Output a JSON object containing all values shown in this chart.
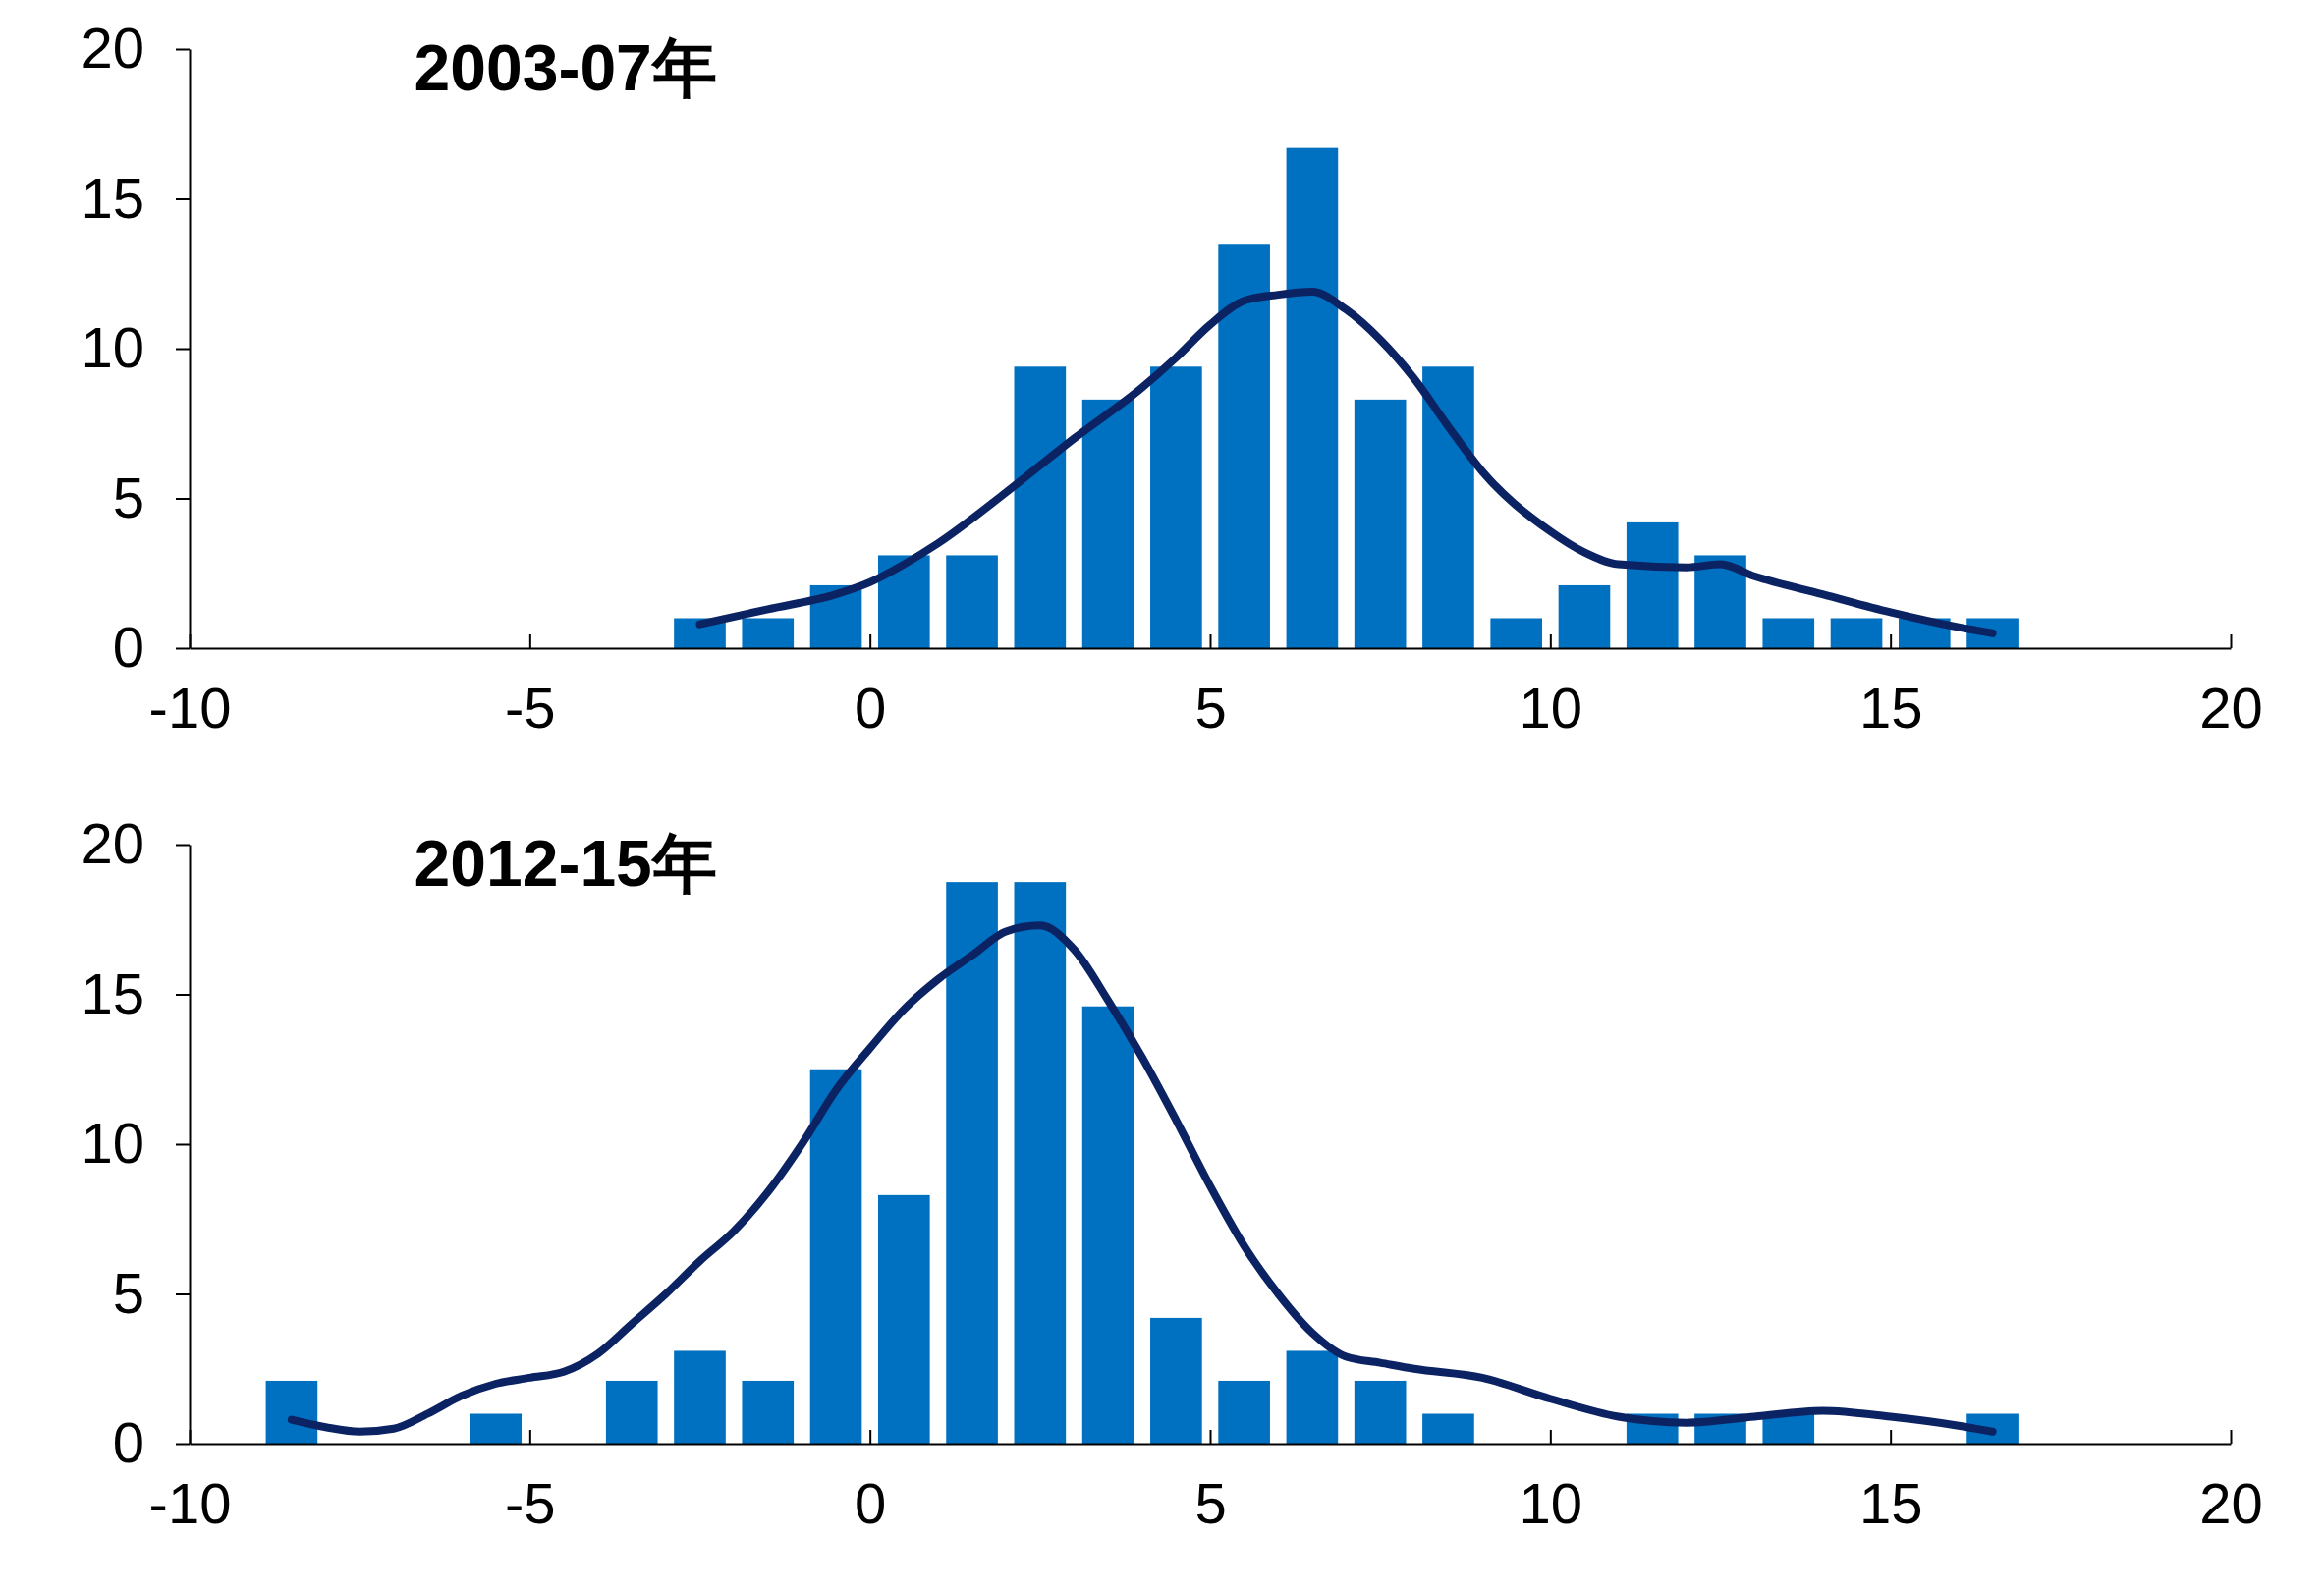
{
  "chart_data": [
    {
      "type": "bar",
      "title": "2003-07年",
      "xlim": [
        -10,
        20
      ],
      "xticks": [
        -10,
        -5,
        0,
        5,
        10,
        15,
        20
      ],
      "ylim": [
        0,
        20
      ],
      "yticks": [
        0,
        5,
        10,
        15,
        20
      ],
      "grid": false,
      "series": [
        {
          "color": "#0070c0",
          "x": [
            -2.5,
            -1.5,
            -0.5,
            0.5,
            1.5,
            2.5,
            3.5,
            4.5,
            5.5,
            6.5,
            7.5,
            8.5,
            9.5,
            10.5,
            11.5,
            12.5,
            13.5,
            14.5,
            15.5,
            16.5
          ],
          "values": [
            1.0,
            1.0,
            2.1,
            3.1,
            3.1,
            9.4,
            8.3,
            9.4,
            13.5,
            16.7,
            8.3,
            9.4,
            1.0,
            2.1,
            4.2,
            3.1,
            1.0,
            1.0,
            1.0,
            1.0
          ]
        },
        {
          "type": "line",
          "color": "#0b2363",
          "x": [
            -2.5,
            -1.5,
            -0.5,
            0,
            0.5,
            1,
            2,
            3,
            4,
            4.5,
            5,
            5.5,
            6,
            6.5,
            7,
            7.5,
            8,
            8.5,
            9,
            10,
            10.5,
            11,
            12,
            12.5,
            13,
            14,
            15,
            16,
            16.5
          ],
          "values": [
            0.8,
            1.3,
            1.8,
            2.2,
            2.8,
            3.5,
            5.2,
            7.0,
            8.7,
            9.7,
            10.8,
            11.6,
            11.8,
            11.9,
            11.3,
            10.3,
            9.0,
            7.4,
            5.9,
            3.9,
            3.2,
            2.8,
            2.7,
            2.8,
            2.4,
            1.8,
            1.2,
            0.7,
            0.5
          ]
        }
      ]
    },
    {
      "type": "bar",
      "title": "2012-15年",
      "xlim": [
        -10,
        20
      ],
      "xticks": [
        -10,
        -5,
        0,
        5,
        10,
        15,
        20
      ],
      "ylim": [
        0,
        20
      ],
      "yticks": [
        0,
        5,
        10,
        15,
        20
      ],
      "grid": false,
      "series": [
        {
          "color": "#0070c0",
          "x": [
            -8.5,
            -5.5,
            -3.5,
            -2.5,
            -1.5,
            -0.5,
            0.5,
            1.5,
            2.5,
            3.5,
            4.5,
            5.5,
            6.5,
            7.5,
            8.5,
            11.5,
            12.5,
            13.5,
            16.5
          ],
          "values": [
            2.1,
            1.0,
            2.1,
            3.1,
            2.1,
            12.5,
            8.3,
            18.75,
            18.75,
            14.6,
            4.2,
            2.1,
            3.1,
            2.1,
            1.0,
            1.0,
            1.0,
            1.0,
            1.0
          ]
        },
        {
          "type": "line",
          "color": "#0b2363",
          "x": [
            -8.5,
            -8,
            -7.5,
            -7,
            -6.5,
            -6,
            -5.5,
            -5,
            -4.5,
            -4,
            -3.5,
            -3,
            -2.5,
            -2,
            -1.5,
            -1,
            -0.5,
            0,
            0.5,
            1,
            1.5,
            2,
            2.5,
            3,
            3.5,
            4,
            4.5,
            5,
            5.5,
            6,
            6.5,
            7,
            7.5,
            8,
            9,
            10,
            11,
            12,
            13,
            14,
            15,
            16,
            16.5
          ],
          "values": [
            0.8,
            0.55,
            0.4,
            0.5,
            1.0,
            1.6,
            2.0,
            2.2,
            2.4,
            3.0,
            4.0,
            5.0,
            6.1,
            7.1,
            8.4,
            10.0,
            11.8,
            13.2,
            14.5,
            15.5,
            16.3,
            17.1,
            17.3,
            16.5,
            14.8,
            12.9,
            10.8,
            8.6,
            6.6,
            5.0,
            3.7,
            2.9,
            2.7,
            2.5,
            2.2,
            1.5,
            0.9,
            0.7,
            0.9,
            1.1,
            0.9,
            0.6,
            0.4
          ]
        }
      ]
    }
  ]
}
